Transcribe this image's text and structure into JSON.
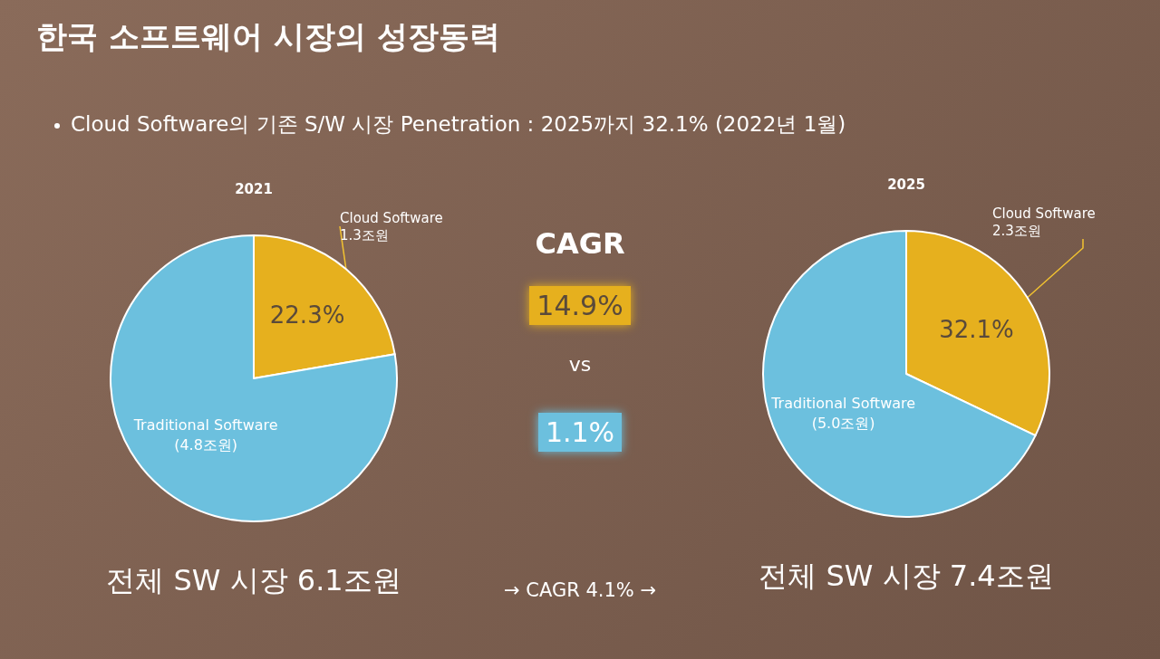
{
  "chart_data": [
    {
      "type": "other",
      "title": "한국 소프트웨어 시장의 성장동력",
      "subtitle": "Cloud Software의 기존 S/W 시장 Penetration : 2025까지 32.1% (2022년 1월)"
    },
    {
      "type": "pie",
      "title": "2021",
      "categories": [
        "Cloud Software\n1.3조원",
        "Traditional Software\n(4.8조원)"
      ],
      "values": [
        22.3,
        77.7
      ],
      "colors": [
        "#e6b01e",
        "#6cc0de"
      ],
      "value_labels": [
        "22.3%",
        null
      ],
      "annotations": [
        "전체 SW 시장 6.1조원"
      ]
    },
    {
      "type": "other",
      "title": "CAGR",
      "annotations": [
        "14.9%",
        "vs",
        "1.1%",
        "→  CAGR 4.1%  →"
      ]
    },
    {
      "type": "pie",
      "title": "2025",
      "categories": [
        "Cloud Software\n2.3조원",
        "Traditional Software\n(5.0조원)"
      ],
      "values": [
        32.1,
        67.9
      ],
      "colors": [
        "#e6b01e",
        "#6cc0de"
      ],
      "value_labels": [
        "32.1%",
        null
      ],
      "annotations": [
        "전체 SW 시장 7.4조원"
      ]
    }
  ]
}
